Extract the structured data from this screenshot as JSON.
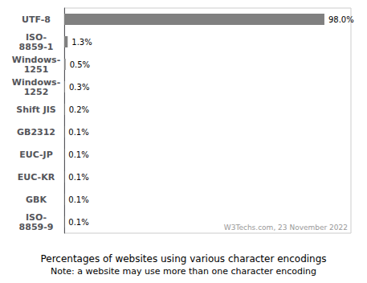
{
  "chart_data": {
    "type": "bar",
    "orientation": "horizontal",
    "title": "Percentages of websites using various character encodings",
    "subtitle": "Note: a website may use more than one character encoding",
    "annotations": [
      "W3Techs.com, 23 November 2022"
    ],
    "categories": [
      "UTF-8",
      "ISO-\n8859-1",
      "Windows-\n1251",
      "Windows-\n1252",
      "Shift JIS",
      "GB2312",
      "EUC-JP",
      "EUC-KR",
      "GBK",
      "ISO-\n8859-9"
    ],
    "values": [
      98.0,
      1.3,
      0.5,
      0.3,
      0.2,
      0.1,
      0.1,
      0.1,
      0.1,
      0.1
    ],
    "value_labels": [
      "98.0%",
      "1.3%",
      "0.5%",
      "0.3%",
      "0.2%",
      "0.1%",
      "0.1%",
      "0.1%",
      "0.1%",
      "0.1%"
    ],
    "data_labels": true,
    "color": "#808080",
    "xlim": [
      0,
      108
    ],
    "tick_labels": "y",
    "grid": false
  }
}
